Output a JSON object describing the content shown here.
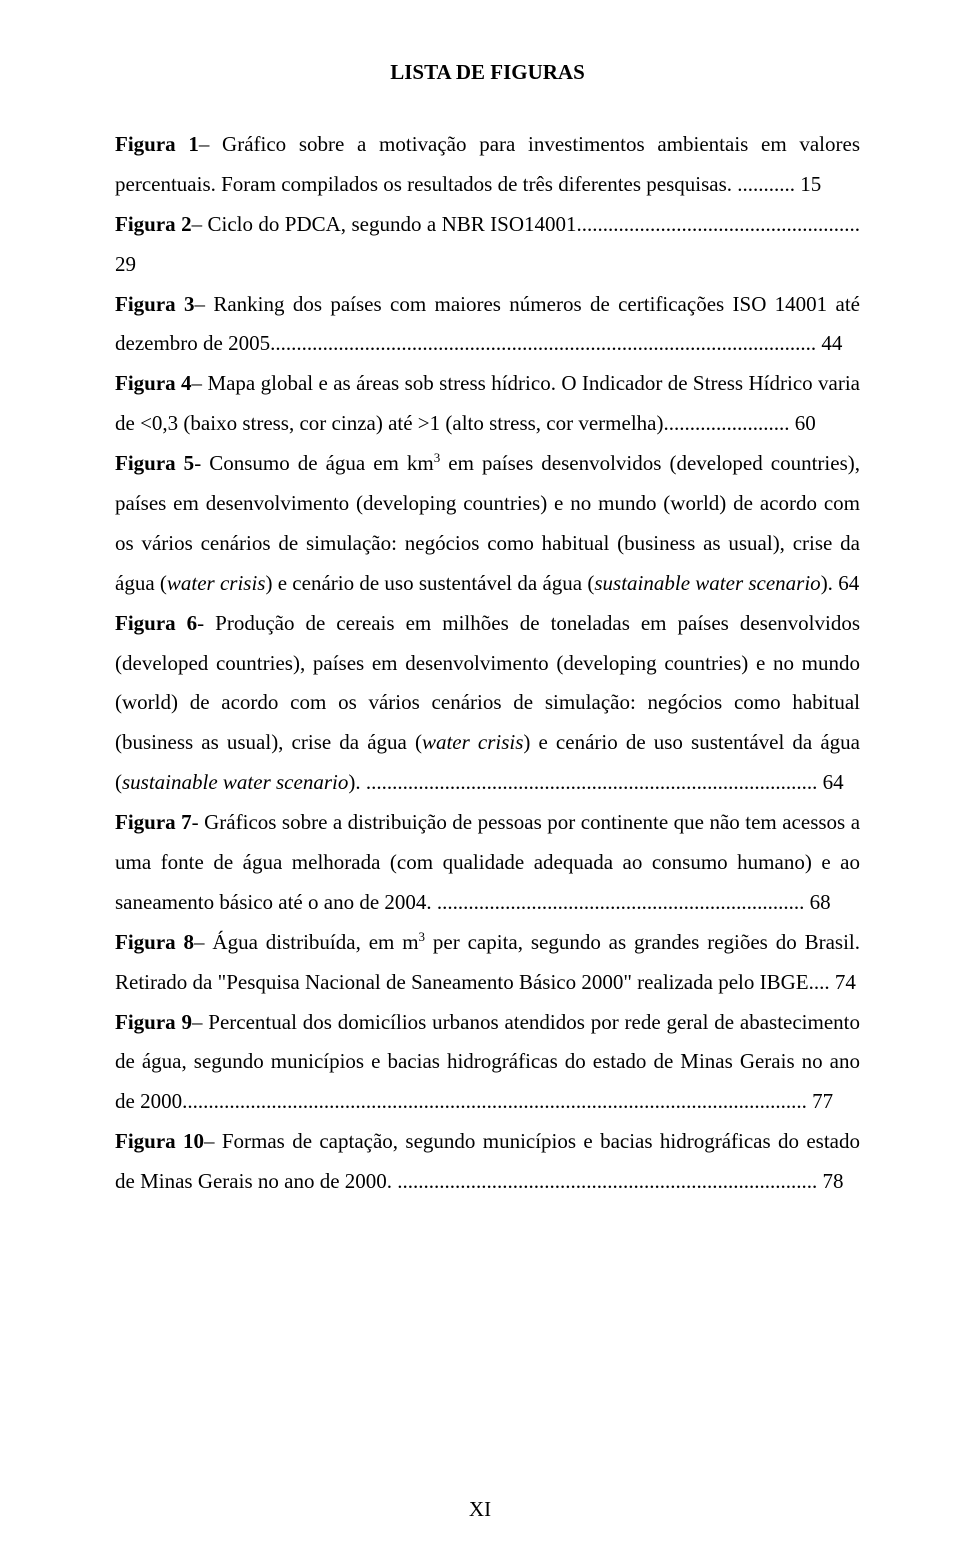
{
  "title": "LISTA DE FIGURAS",
  "entries": [
    {
      "label": "Figura 1",
      "sep": "– ",
      "text_a": "Gráfico sobre a motivação para investimentos ambientais em valores percentuais. Foram compilados os resultados de três diferentes pesquisas.",
      "dots": " ........... ",
      "page": "15"
    },
    {
      "label": "Figura 2",
      "sep": "– ",
      "text_a": "Ciclo do PDCA, segundo a NBR ISO14001.",
      "dots": "..................................................... ",
      "page": "29"
    },
    {
      "label": "Figura 3",
      "sep": "– ",
      "text_a": "Ranking dos países com maiores números de certificações ISO 14001 até dezembro de 2005.",
      "dots": "....................................................................................................... ",
      "page": "44"
    },
    {
      "label": "Figura 4",
      "sep": "– ",
      "text_a": "Mapa global e as áreas sob stress hídrico. O Indicador de Stress Hídrico varia de <0,3 (baixo stress, cor cinza) até >1 (alto stress, cor vermelha).",
      "dots": "....................... ",
      "page": "60"
    },
    {
      "label": "Figura 5",
      "sep": "- ",
      "text_a": "Consumo de água em km",
      "sup": "3",
      "text_b": " em países desenvolvidos (developed countries), países em desenvolvimento (developing countries) e no mundo (world) de acordo com os vários cenários de simulação: negócios como habitual (business as usual), crise da água (",
      "italic_a": "water crisis",
      "text_c": ") e cenário de uso sustentável da água (",
      "italic_b": "sustainable water scenario",
      "text_d": "). ",
      "page": "64"
    },
    {
      "label": "Figura 6",
      "sep": "- ",
      "text_a": "Produção de cereais em milhões de toneladas em países desenvolvidos (developed countries), países em desenvolvimento (developing countries) e no mundo (world) de acordo com os vários cenários de simulação: negócios como habitual (business as usual), crise da água (",
      "italic_a": "water crisis",
      "text_b": ") e cenário de uso sustentável da água (",
      "italic_b": "sustainable water scenario",
      "text_c": ").",
      "dots": " ...................................................................................... ",
      "page": "64"
    },
    {
      "label": "Figura 7",
      "sep": "- ",
      "text_a": "Gráficos sobre a distribuição de pessoas por continente que não tem acessos a uma fonte de água melhorada (com qualidade adequada ao consumo humano) e ao saneamento básico até o ano de 2004.",
      "dots": " ...................................................................... ",
      "page": "68"
    },
    {
      "label": "Figura 8",
      "sep": "– ",
      "text_a": "Água distribuída, em m",
      "sup": "3",
      "text_b": " per capita, segundo as grandes regiões do Brasil. Retirado da \"Pesquisa Nacional de Saneamento Básico 2000\" realizada pelo IBGE.",
      "dots": "... ",
      "page": "74"
    },
    {
      "label": "Figura 9",
      "sep": "– ",
      "text_a": "Percentual dos domicílios urbanos atendidos por rede geral de abastecimento de água, segundo municípios e bacias hidrográficas do estado de Minas Gerais no ano de 2000.",
      "dots": "...................................................................................................................... ",
      "page": "77"
    },
    {
      "label": "Figura 10",
      "sep": "– ",
      "text_a": "Formas de captação, segundo municípios e bacias hidrográficas do estado de Minas Gerais no ano de 2000.",
      "dots": " ................................................................................ ",
      "page": "78"
    }
  ],
  "pagenum": "XI"
}
